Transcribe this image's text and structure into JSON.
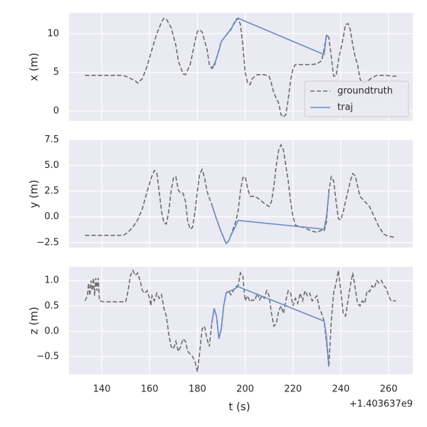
{
  "chart_data": [
    {
      "type": "line",
      "ylabel": "x (m)",
      "xlim": [
        126.3,
        270.1
      ],
      "xticks": [
        140,
        160,
        180,
        200,
        220,
        240,
        260
      ],
      "ylim": [
        -1.3,
        12.7
      ],
      "yticks": [
        0,
        5,
        10
      ],
      "grid": true,
      "legend": "lower right",
      "series": [
        {
          "name": "groundtruth",
          "color": "#6b6b6b",
          "dashed": true,
          "x": [
            133,
            136,
            140,
            144,
            148,
            150,
            152,
            154,
            155,
            157,
            159,
            161,
            163,
            165,
            166,
            167,
            169,
            171,
            172,
            174,
            175,
            177,
            179,
            180,
            181,
            182,
            184,
            185,
            186,
            187,
            188,
            190,
            192,
            194,
            196,
            197,
            198,
            199,
            200,
            201,
            202,
            203,
            205,
            208,
            210,
            211,
            212,
            214,
            215,
            216,
            217,
            218,
            219,
            220,
            221,
            223,
            226,
            228,
            230,
            232,
            233,
            234,
            235,
            236,
            237,
            238,
            239,
            241,
            242,
            243,
            244,
            245,
            246,
            247,
            248,
            249,
            251,
            253,
            255,
            257,
            259,
            261,
            264
          ],
          "values": [
            4.6,
            4.6,
            4.6,
            4.6,
            4.6,
            4.5,
            4.2,
            3.9,
            3.6,
            4.2,
            5.8,
            8.0,
            10.0,
            11.5,
            12.0,
            11.9,
            10.8,
            8.5,
            6.5,
            4.8,
            4.7,
            6.0,
            9.0,
            10.3,
            10.5,
            10.2,
            8.0,
            6.0,
            5.5,
            5.7,
            6.8,
            9.0,
            9.8,
            10.5,
            11.8,
            12.0,
            11.2,
            8.5,
            5.0,
            3.6,
            3.4,
            4.2,
            4.7,
            4.7,
            4.5,
            3.5,
            2.3,
            1.0,
            -0.5,
            -0.8,
            -0.5,
            1.5,
            4.0,
            5.5,
            6.0,
            6.0,
            6.0,
            6.0,
            6.1,
            6.5,
            8.0,
            9.8,
            9.5,
            7.0,
            4.5,
            4.5,
            6.5,
            9.5,
            11.2,
            11.3,
            10.5,
            8.5,
            7.0,
            6.0,
            4.2,
            3.6,
            3.8,
            4.3,
            4.6,
            4.6,
            4.6,
            4.5,
            4.5
          ]
        },
        {
          "name": "traj",
          "color": "#6a8ac4",
          "dashed": false,
          "x": [
            186,
            187,
            188,
            189,
            190,
            192,
            194,
            196,
            197,
            233,
            234,
            235
          ],
          "values": [
            5.6,
            6.0,
            6.8,
            7.8,
            9.0,
            9.8,
            10.6,
            11.6,
            12.0,
            7.3,
            9.8,
            9.6
          ]
        }
      ]
    },
    {
      "type": "line",
      "ylabel": "y (m)",
      "xlim": [
        126.3,
        270.1
      ],
      "xticks": [
        140,
        160,
        180,
        200,
        220,
        240,
        260
      ],
      "ylim": [
        -3.0,
        7.45
      ],
      "yticks": [
        {
          "value": -2.5,
          "label": "−2.5"
        },
        {
          "value": 0,
          "label": "0.0"
        },
        2.5,
        {
          "value": 5,
          "label": "5.0"
        },
        7.5
      ],
      "grid": true,
      "series": [
        {
          "color": "#6b6b6b",
          "dashed": true,
          "x": [
            133,
            140,
            146,
            149,
            151,
            153,
            155,
            157,
            159,
            161,
            162,
            163,
            164,
            165,
            166,
            167,
            168,
            169,
            170,
            171,
            172,
            173,
            174,
            175,
            176,
            177,
            178,
            179,
            180,
            181,
            182,
            183,
            184,
            185,
            186,
            188,
            190,
            192,
            193,
            194,
            196,
            197,
            198,
            199,
            200,
            201,
            202,
            204,
            206,
            208,
            210,
            211,
            212,
            213,
            214,
            215,
            216,
            217,
            218,
            219,
            220,
            221,
            222,
            223,
            224,
            226,
            228,
            230,
            232,
            233,
            234,
            235,
            236,
            237,
            238,
            239,
            240,
            241,
            242,
            243,
            244,
            245,
            246,
            247,
            248,
            250,
            252,
            254,
            256,
            258,
            260,
            263
          ],
          "values": [
            -1.8,
            -1.8,
            -1.8,
            -1.8,
            -1.5,
            -1.0,
            -0.3,
            0.8,
            2.5,
            4.0,
            4.5,
            4.3,
            2.5,
            0.5,
            -0.6,
            -0.7,
            0.5,
            2.5,
            3.8,
            3.9,
            2.6,
            2.3,
            2.3,
            1.5,
            -0.5,
            -1.2,
            -1.0,
            0.5,
            2.5,
            4.2,
            4.6,
            3.8,
            2.5,
            1.8,
            1.2,
            -0.2,
            -1.5,
            -2.6,
            -2.4,
            -1.8,
            -0.5,
            0.5,
            2.5,
            3.8,
            3.9,
            2.8,
            2.0,
            2.0,
            1.7,
            1.3,
            1.0,
            1.5,
            3.0,
            5.0,
            6.5,
            7.0,
            6.5,
            5.0,
            3.5,
            1.5,
            0.0,
            -0.8,
            -0.9,
            -1.0,
            -1.0,
            -1.2,
            -1.4,
            -1.5,
            -1.3,
            -1.4,
            -0.5,
            2.5,
            3.9,
            3.5,
            1.5,
            -0.2,
            -0.3,
            0.5,
            1.5,
            2.5,
            3.5,
            4.2,
            4.0,
            3.0,
            2.0,
            1.5,
            1.0,
            0.0,
            -1.0,
            -1.7,
            -1.9,
            -2.0
          ]
        },
        {
          "color": "#6a8ac4",
          "dashed": false,
          "x": [
            186,
            188,
            190,
            192,
            193,
            194,
            196,
            197,
            233,
            234,
            235
          ],
          "values": [
            1.2,
            -0.2,
            -1.5,
            -2.6,
            -2.4,
            -1.8,
            -0.9,
            -0.35,
            -1.2,
            0.0,
            2.3
          ]
        }
      ]
    },
    {
      "type": "line",
      "ylabel": "z (m)",
      "xlabel": "t (s)",
      "x_offset": "+1.403637e9",
      "xlim": [
        126.3,
        270.1
      ],
      "xticks": [
        140,
        160,
        180,
        200,
        220,
        240,
        260
      ],
      "ylim": [
        -0.85,
        1.27
      ],
      "yticks": [
        {
          "value": -0.5,
          "label": "−0.5"
        },
        {
          "value": 0,
          "label": "0.0"
        },
        0.5,
        {
          "value": 1,
          "label": "1.0"
        }
      ],
      "grid": true,
      "series": [
        {
          "color": "#6b6b6b",
          "dashed": true,
          "x": [
            133,
            134,
            134.5,
            135,
            135.5,
            136,
            136.5,
            137,
            137.5,
            138,
            138.5,
            139,
            141,
            145,
            150,
            151,
            152,
            153,
            154,
            155,
            156,
            157,
            158,
            159,
            160,
            160.5,
            161,
            162,
            163,
            164,
            165,
            166,
            167,
            168,
            169,
            170,
            171,
            172,
            173,
            174,
            175,
            176,
            177,
            178,
            179,
            180,
            181,
            182,
            183,
            184,
            185,
            186,
            187,
            188,
            189,
            190,
            191,
            192,
            193,
            194,
            195,
            196,
            197,
            198,
            199,
            200,
            201,
            202,
            203,
            204,
            205,
            206,
            207,
            208,
            209,
            210,
            211,
            212,
            213,
            214,
            215,
            216,
            217,
            218,
            219,
            220,
            221,
            222,
            223,
            224,
            225,
            226,
            227,
            228,
            229,
            230,
            231,
            232,
            233,
            234,
            235,
            236,
            237,
            238,
            239,
            240,
            241,
            242,
            243,
            244,
            245,
            246,
            247,
            248,
            249,
            250,
            251,
            252,
            253,
            254,
            255,
            256,
            257,
            258,
            259,
            260,
            261,
            263
          ],
          "values": [
            0.6,
            0.7,
            0.95,
            0.7,
            1.0,
            0.8,
            1.05,
            0.7,
            1.05,
            0.8,
            1.05,
            0.6,
            0.58,
            0.58,
            0.58,
            0.8,
            1.1,
            1.2,
            1.1,
            1.15,
            1.0,
            0.8,
            0.75,
            0.8,
            0.65,
            0.5,
            0.7,
            0.6,
            0.75,
            0.65,
            0.72,
            0.45,
            0.3,
            -0.05,
            -0.3,
            -0.35,
            -0.2,
            -0.4,
            -0.3,
            -0.15,
            -0.2,
            -0.4,
            -0.45,
            -0.5,
            -0.6,
            -0.8,
            -0.4,
            0.05,
            0.1,
            -0.15,
            -0.3,
            0.15,
            0.45,
            0.3,
            -0.15,
            0.05,
            0.5,
            0.75,
            0.8,
            0.72,
            0.8,
            0.88,
            0.9,
            1.15,
            1.1,
            0.6,
            0.7,
            0.58,
            0.62,
            0.6,
            0.75,
            0.62,
            0.7,
            0.65,
            0.8,
            0.7,
            0.35,
            0.1,
            0.15,
            0.4,
            0.5,
            0.35,
            0.6,
            0.8,
            0.75,
            0.5,
            0.65,
            0.55,
            0.75,
            0.6,
            0.8,
            0.7,
            0.75,
            0.6,
            0.65,
            0.7,
            0.45,
            0.35,
            0.2,
            -0.2,
            -0.7,
            0.2,
            0.75,
            0.95,
            1.2,
            0.8,
            0.35,
            0.3,
            0.6,
            0.9,
            1.15,
            0.85,
            0.55,
            0.5,
            0.6,
            0.55,
            0.8,
            0.78,
            0.9,
            0.85,
            1.0,
            0.95,
            1.0,
            0.9,
            0.85,
            0.7,
            0.6,
            0.6
          ]
        },
        {
          "color": "#6a8ac4",
          "dashed": false,
          "x": [
            186,
            187,
            188,
            189,
            190,
            191,
            192,
            193,
            195,
            197,
            233,
            234,
            235
          ],
          "values": [
            0.15,
            0.45,
            0.3,
            -0.15,
            0.05,
            0.5,
            0.75,
            0.78,
            0.82,
            0.88,
            0.2,
            -0.1,
            -0.7
          ]
        }
      ]
    }
  ]
}
